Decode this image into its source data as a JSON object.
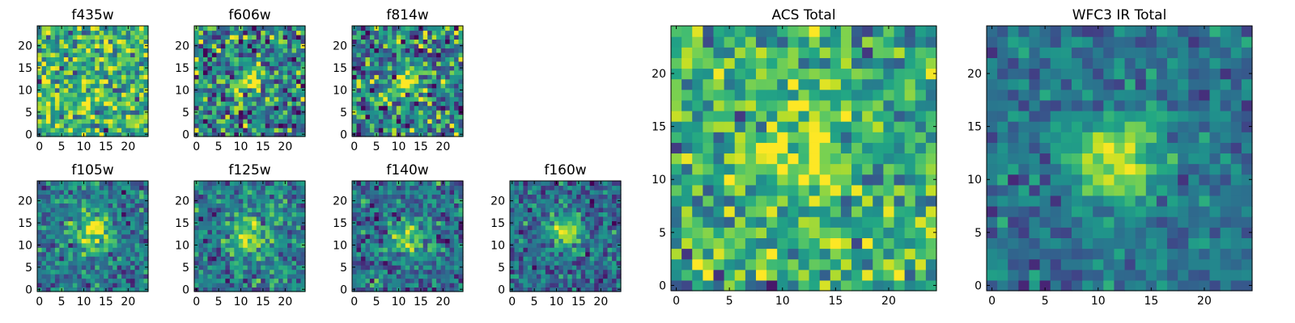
{
  "chart_data": [
    {
      "type": "heatmap",
      "title": "f435w",
      "x_ticks": [
        0,
        5,
        10,
        15,
        20
      ],
      "y_ticks": [
        0,
        5,
        10,
        15,
        20
      ],
      "grid_size": [
        25,
        25
      ],
      "xlim": [
        0,
        24
      ],
      "ylim": [
        0,
        24
      ],
      "peak": [
        13,
        12
      ],
      "peak_strength": 0.05,
      "sigma": 3.0,
      "noise": 0.45,
      "base": 0.65,
      "seed": 11
    },
    {
      "type": "heatmap",
      "title": "f606w",
      "x_ticks": [
        0,
        5,
        10,
        15,
        20
      ],
      "y_ticks": [
        0,
        5,
        10,
        15,
        20
      ],
      "grid_size": [
        25,
        25
      ],
      "xlim": [
        0,
        24
      ],
      "ylim": [
        0,
        24
      ],
      "peak": [
        12,
        12
      ],
      "peak_strength": 0.45,
      "sigma": 2.2,
      "noise": 0.5,
      "base": 0.45,
      "seed": 23
    },
    {
      "type": "heatmap",
      "title": "f814w",
      "x_ticks": [
        0,
        5,
        10,
        15,
        20
      ],
      "y_ticks": [
        0,
        5,
        10,
        15,
        20
      ],
      "grid_size": [
        25,
        25
      ],
      "xlim": [
        0,
        24
      ],
      "ylim": [
        0,
        24
      ],
      "peak": [
        12,
        12
      ],
      "peak_strength": 0.45,
      "sigma": 2.4,
      "noise": 0.5,
      "base": 0.45,
      "seed": 37
    },
    {
      "type": "heatmap",
      "title": "f105w",
      "x_ticks": [
        0,
        5,
        10,
        15,
        20
      ],
      "y_ticks": [
        0,
        5,
        10,
        15,
        20
      ],
      "grid_size": [
        25,
        25
      ],
      "xlim": [
        0,
        24
      ],
      "ylim": [
        0,
        24
      ],
      "peak": [
        12,
        13
      ],
      "peak_strength": 0.55,
      "sigma": 2.8,
      "noise": 0.3,
      "base": 0.4,
      "seed": 41
    },
    {
      "type": "heatmap",
      "title": "f125w",
      "x_ticks": [
        0,
        5,
        10,
        15,
        20
      ],
      "y_ticks": [
        0,
        5,
        10,
        15,
        20
      ],
      "grid_size": [
        25,
        25
      ],
      "xlim": [
        0,
        24
      ],
      "ylim": [
        0,
        24
      ],
      "peak": [
        12,
        12
      ],
      "peak_strength": 0.5,
      "sigma": 2.8,
      "noise": 0.32,
      "base": 0.42,
      "seed": 53
    },
    {
      "type": "heatmap",
      "title": "f140w",
      "x_ticks": [
        0,
        5,
        10,
        15,
        20
      ],
      "y_ticks": [
        0,
        5,
        10,
        15,
        20
      ],
      "grid_size": [
        25,
        25
      ],
      "xlim": [
        0,
        24
      ],
      "ylim": [
        0,
        24
      ],
      "peak": [
        12,
        12
      ],
      "peak_strength": 0.5,
      "sigma": 2.6,
      "noise": 0.32,
      "base": 0.38,
      "seed": 67
    },
    {
      "type": "heatmap",
      "title": "f160w",
      "x_ticks": [
        0,
        5,
        10,
        15,
        20
      ],
      "y_ticks": [
        0,
        5,
        10,
        15,
        20
      ],
      "grid_size": [
        25,
        25
      ],
      "xlim": [
        0,
        24
      ],
      "ylim": [
        0,
        24
      ],
      "peak": [
        12,
        13
      ],
      "peak_strength": 0.55,
      "sigma": 2.5,
      "noise": 0.3,
      "base": 0.35,
      "seed": 79
    },
    {
      "type": "heatmap",
      "title": "ACS Total",
      "x_ticks": [
        0,
        5,
        10,
        15,
        20
      ],
      "y_ticks": [
        0,
        5,
        10,
        15,
        20
      ],
      "grid_size": [
        25,
        25
      ],
      "xlim": [
        0,
        24
      ],
      "ylim": [
        0,
        24
      ],
      "peak": [
        12,
        12
      ],
      "peak_strength": 0.35,
      "sigma": 2.4,
      "noise": 0.38,
      "base": 0.62,
      "seed": 97
    },
    {
      "type": "heatmap",
      "title": "WFC3 IR Total",
      "x_ticks": [
        0,
        5,
        10,
        15,
        20
      ],
      "y_ticks": [
        0,
        5,
        10,
        15,
        20
      ],
      "grid_size": [
        25,
        25
      ],
      "xlim": [
        0,
        24
      ],
      "ylim": [
        0,
        24
      ],
      "peak": [
        12,
        12
      ],
      "peak_strength": 0.6,
      "sigma": 2.8,
      "noise": 0.22,
      "base": 0.38,
      "seed": 113
    }
  ]
}
